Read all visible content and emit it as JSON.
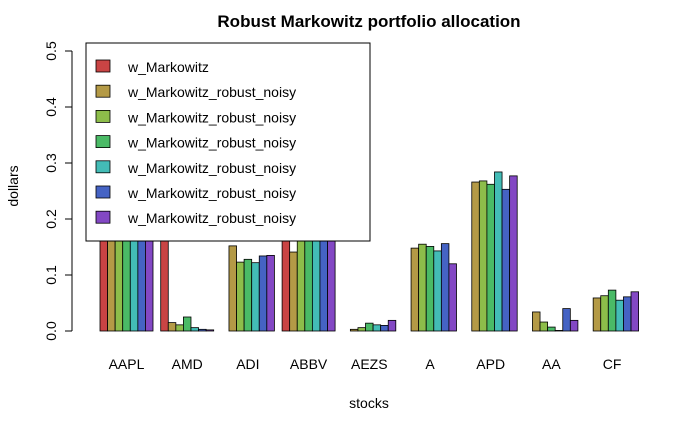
{
  "chart_data": {
    "type": "bar",
    "title": "Robust Markowitz portfolio allocation",
    "xlabel": "stocks",
    "ylabel": "dollars",
    "ylim": [
      0,
      0.5
    ],
    "yticks": [
      "0.0",
      "0.1",
      "0.2",
      "0.3",
      "0.4",
      "0.5"
    ],
    "categories": [
      "AAPL",
      "AMD",
      "ADI",
      "ABBV",
      "AEZS",
      "A",
      "APD",
      "AA",
      "CF"
    ],
    "legend_position": "top-left",
    "series": [
      {
        "name": "w_Markowitz",
        "color": "#c94444",
        "values": [
          0.26,
          0.215,
          0.0,
          0.33,
          0.0,
          0.0,
          0.0,
          0.0,
          0.0
        ]
      },
      {
        "name": "w_Markowitz_robust_noisy",
        "color": "#b49a46",
        "values": [
          0.2,
          0.015,
          0.152,
          0.141,
          0.003,
          0.148,
          0.266,
          0.034,
          0.059
        ]
      },
      {
        "name": "w_Markowitz_robust_noisy",
        "color": "#8dbd4a",
        "values": [
          0.2,
          0.011,
          0.123,
          0.19,
          0.006,
          0.155,
          0.268,
          0.016,
          0.063
        ]
      },
      {
        "name": "w_Markowitz_robust_noisy",
        "color": "#4aba66",
        "values": [
          0.2,
          0.025,
          0.128,
          0.2,
          0.014,
          0.151,
          0.262,
          0.007,
          0.073
        ]
      },
      {
        "name": "w_Markowitz_robust_noisy",
        "color": "#43bcb6",
        "values": [
          0.2,
          0.006,
          0.122,
          0.2,
          0.011,
          0.143,
          0.284,
          0.001,
          0.055
        ]
      },
      {
        "name": "w_Markowitz_robust_noisy",
        "color": "#4563c4",
        "values": [
          0.2,
          0.003,
          0.134,
          0.2,
          0.01,
          0.156,
          0.253,
          0.04,
          0.061
        ]
      },
      {
        "name": "w_Markowitz_robust_noisy",
        "color": "#8348c4",
        "values": [
          0.2,
          0.002,
          0.135,
          0.2,
          0.019,
          0.12,
          0.277,
          0.019,
          0.07
        ]
      }
    ]
  }
}
